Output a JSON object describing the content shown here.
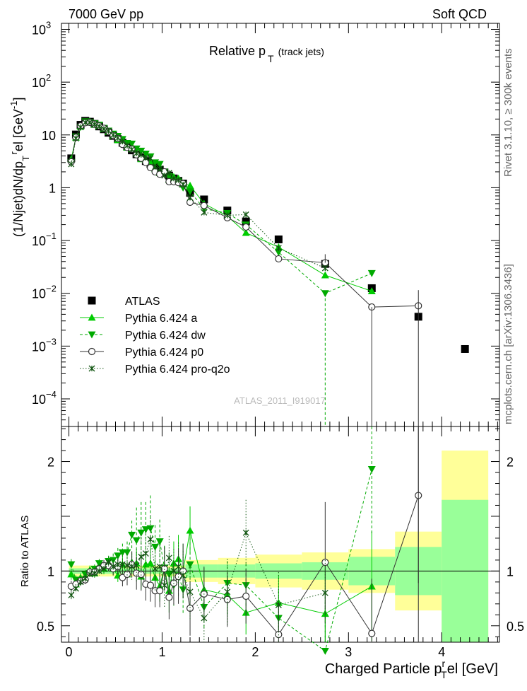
{
  "header": {
    "left": "7000 GeV pp",
    "right": "Soft QCD",
    "side_top": "Rivet 3.1.10, ≥ 300k events",
    "side_bottom": "mcplots.cern.ch [arXiv:1306.3436]",
    "watermark": "ATLAS_2011_I919017"
  },
  "chart_data": [
    {
      "type": "scatter",
      "title_main": "Relative p",
      "title_sub": "T",
      "title_note": "(track jets)",
      "ylabel": "(1/Njet)dN/dp",
      "ylabel_sub1": "T",
      "ylabel_sup": "r",
      "ylabel_tail": "el [GeV",
      "ylabel_exp": "-1",
      "ylabel_end": "]",
      "yscale": "log",
      "ylim": [
        3e-05,
        1300
      ],
      "xlim": [
        -0.08,
        4.62
      ],
      "ytick_labels": [
        {
          "v": 0.0001,
          "base": "10",
          "exp": "−4"
        },
        {
          "v": 0.001,
          "base": "10",
          "exp": "−3"
        },
        {
          "v": 0.01,
          "base": "10",
          "exp": "−2"
        },
        {
          "v": 0.1,
          "base": "10",
          "exp": "−1"
        },
        {
          "v": 1,
          "base": "1",
          "exp": ""
        },
        {
          "v": 10,
          "base": "10",
          "exp": ""
        },
        {
          "v": 100,
          "base": "10",
          "exp": "2"
        },
        {
          "v": 1000,
          "base": "10",
          "exp": "3"
        }
      ],
      "legend_position": "lower-left",
      "series": [
        {
          "name": "ATLAS",
          "color": "#000000",
          "marker": "square",
          "style": "none",
          "x": [
            0.025,
            0.075,
            0.125,
            0.175,
            0.225,
            0.275,
            0.325,
            0.375,
            0.425,
            0.475,
            0.525,
            0.575,
            0.625,
            0.675,
            0.725,
            0.775,
            0.825,
            0.875,
            0.925,
            0.975,
            1.025,
            1.075,
            1.125,
            1.175,
            1.225,
            1.3,
            1.45,
            1.7,
            1.9,
            2.25,
            2.75,
            3.25,
            3.75,
            4.25
          ],
          "y": [
            3.6,
            10.2,
            15.5,
            18.5,
            17.8,
            16.2,
            14.5,
            12.8,
            11.0,
            9.6,
            8.3,
            7.1,
            6.0,
            5.1,
            4.3,
            3.7,
            3.2,
            2.8,
            2.45,
            2.2,
            1.95,
            1.7,
            1.5,
            1.35,
            1.2,
            0.8,
            0.6,
            0.37,
            0.23,
            0.105,
            0.036,
            0.0125,
            0.0036,
            0.00088
          ]
        },
        {
          "name": "Pythia 6.424 a",
          "color": "#00cc00",
          "marker": "triangle-up",
          "style": "solid",
          "x": [
            0.025,
            0.075,
            0.125,
            0.175,
            0.225,
            0.275,
            0.325,
            0.375,
            0.425,
            0.475,
            0.525,
            0.575,
            0.625,
            0.675,
            0.725,
            0.775,
            0.825,
            0.875,
            0.925,
            0.975,
            1.025,
            1.075,
            1.125,
            1.175,
            1.225,
            1.3,
            1.45,
            1.7,
            1.9,
            2.25,
            2.75,
            3.25
          ],
          "y": [
            3.5,
            9.0,
            14.5,
            17.5,
            18.0,
            15.8,
            14.9,
            13.0,
            11.5,
            9.8,
            8.0,
            7.5,
            5.8,
            5.5,
            4.6,
            3.5,
            3.4,
            3.0,
            2.3,
            1.9,
            2.0,
            1.4,
            1.6,
            1.5,
            1.2,
            1.1,
            0.5,
            0.29,
            0.14,
            0.075,
            0.022,
            0.011
          ]
        },
        {
          "name": "Pythia 6.424 dw",
          "color": "#00aa00",
          "marker": "triangle-down",
          "style": "dashed",
          "x": [
            0.025,
            0.075,
            0.125,
            0.175,
            0.225,
            0.275,
            0.325,
            0.375,
            0.425,
            0.475,
            0.525,
            0.575,
            0.625,
            0.675,
            0.725,
            0.775,
            0.825,
            0.875,
            0.925,
            0.975,
            1.025,
            1.075,
            1.125,
            1.175,
            1.225,
            1.3,
            1.45,
            1.7,
            1.9,
            2.25,
            2.75,
            3.25
          ],
          "y": [
            3.0,
            9.3,
            14.0,
            18.0,
            17.5,
            16.5,
            15.5,
            13.5,
            12.0,
            10.5,
            9.5,
            8.3,
            7.0,
            6.8,
            5.5,
            5.0,
            4.4,
            3.9,
            3.0,
            2.8,
            2.0,
            1.65,
            1.3,
            1.3,
            1.0,
            0.85,
            0.4,
            0.33,
            0.2,
            0.06,
            0.01,
            0.024
          ]
        },
        {
          "name": "Pythia 6.424 p0",
          "color": "#333333",
          "marker": "circle-open",
          "style": "solid",
          "x": [
            0.025,
            0.075,
            0.125,
            0.175,
            0.225,
            0.275,
            0.325,
            0.375,
            0.425,
            0.475,
            0.525,
            0.575,
            0.625,
            0.675,
            0.725,
            0.775,
            0.825,
            0.875,
            0.925,
            0.975,
            1.025,
            1.075,
            1.125,
            1.175,
            1.225,
            1.3,
            1.45,
            1.7,
            1.9,
            2.25,
            2.75,
            3.25,
            3.75
          ],
          "y": [
            3.1,
            9.0,
            14.8,
            17.0,
            17.3,
            16.0,
            14.8,
            13.4,
            11.6,
            9.8,
            8.6,
            6.6,
            5.8,
            5.4,
            4.2,
            3.6,
            3.0,
            2.4,
            2.0,
            1.8,
            2.0,
            1.3,
            1.3,
            1.25,
            1.2,
            0.53,
            0.46,
            0.27,
            0.18,
            0.045,
            0.038,
            0.0055,
            0.0058
          ]
        },
        {
          "name": "Pythia 6.424 pro-q2o",
          "color": "#115511",
          "marker": "star",
          "style": "dotted",
          "x": [
            0.025,
            0.075,
            0.125,
            0.175,
            0.225,
            0.275,
            0.325,
            0.375,
            0.425,
            0.475,
            0.525,
            0.575,
            0.625,
            0.675,
            0.725,
            0.775,
            0.825,
            0.875,
            0.925,
            0.975,
            1.025,
            1.075,
            1.125,
            1.175,
            1.225,
            1.3,
            1.45,
            1.7,
            1.9,
            2.25,
            2.75
          ],
          "y": [
            2.8,
            8.6,
            14.0,
            17.2,
            17.3,
            15.9,
            14.5,
            13.0,
            11.9,
            10.0,
            8.8,
            7.5,
            6.3,
            5.3,
            4.5,
            4.2,
            3.7,
            3.6,
            2.5,
            2.3,
            1.7,
            1.9,
            1.5,
            1.4,
            1.15,
            0.65,
            0.34,
            0.3,
            0.31,
            0.072,
            0.03
          ]
        }
      ]
    },
    {
      "type": "scatter",
      "ylabel": "Ratio to ATLAS",
      "xlabel": "Charged Particle p",
      "xlabel_sub": "T",
      "xlabel_sup": "r",
      "xlabel_tail": "el [GeV]",
      "ylim": [
        0.35,
        2.32
      ],
      "xlim": [
        -0.08,
        4.62
      ],
      "xtick_labels": [
        "0",
        "1",
        "2",
        "3",
        "4"
      ],
      "ytick_labels": [
        "0.5",
        "1",
        "2"
      ],
      "bands": [
        {
          "x0": 0.0,
          "x1": 1.25,
          "g": 0.025,
          "y": 0.05
        },
        {
          "x0": 1.25,
          "x1": 1.6,
          "g": 0.06,
          "y": 0.1
        },
        {
          "x0": 1.6,
          "x1": 2.0,
          "g": 0.06,
          "y": 0.12
        },
        {
          "x0": 2.0,
          "x1": 2.5,
          "g": 0.07,
          "y": 0.15
        },
        {
          "x0": 2.5,
          "x1": 3.0,
          "g": 0.08,
          "y": 0.17
        },
        {
          "x0": 3.0,
          "x1": 3.5,
          "g": 0.13,
          "y": 0.2
        },
        {
          "x0": 3.5,
          "x1": 4.0,
          "g": 0.22,
          "y": 0.36
        },
        {
          "x0": 4.0,
          "x1": 4.5,
          "g": 0.65,
          "y": 1.1
        }
      ],
      "series": [
        {
          "name": "Pythia 6.424 a",
          "color": "#00cc00",
          "marker": "triangle-up",
          "style": "solid",
          "x": [
            0.025,
            0.075,
            0.125,
            0.175,
            0.225,
            0.275,
            0.325,
            0.375,
            0.425,
            0.475,
            0.525,
            0.575,
            0.625,
            0.675,
            0.725,
            0.775,
            0.825,
            0.875,
            0.925,
            0.975,
            1.025,
            1.075,
            1.125,
            1.175,
            1.225,
            1.3,
            1.45,
            1.7,
            1.9,
            2.25,
            2.75,
            3.25
          ],
          "y": [
            0.97,
            0.88,
            0.94,
            0.95,
            1.01,
            0.98,
            1.03,
            1.02,
            1.05,
            1.02,
            0.96,
            1.06,
            0.97,
            1.08,
            1.07,
            0.95,
            1.06,
            1.07,
            0.94,
            0.86,
            1.03,
            0.82,
            1.07,
            1.11,
            1.0,
            1.37,
            0.83,
            0.78,
            0.62,
            0.71,
            0.61,
            0.86
          ],
          "err": [
            0.05,
            0.04,
            0.04,
            0.04,
            0.04,
            0.04,
            0.04,
            0.05,
            0.05,
            0.06,
            0.06,
            0.07,
            0.08,
            0.1,
            0.12,
            0.12,
            0.12,
            0.14,
            0.15,
            0.14,
            0.2,
            0.2,
            0.2,
            0.22,
            0.25,
            0.22,
            0.2,
            0.18,
            0.2,
            0.25,
            0.45,
            0.5
          ]
        },
        {
          "name": "Pythia 6.424 dw",
          "color": "#00aa00",
          "marker": "triangle-down",
          "style": "dashed",
          "x": [
            0.025,
            0.075,
            0.125,
            0.175,
            0.225,
            0.275,
            0.325,
            0.375,
            0.425,
            0.475,
            0.525,
            0.575,
            0.625,
            0.675,
            0.725,
            0.775,
            0.825,
            0.875,
            0.925,
            0.975,
            1.025,
            1.075,
            1.125,
            1.175,
            1.225,
            1.3,
            1.45,
            1.7,
            1.9,
            2.25,
            2.75,
            3.25
          ],
          "y": [
            1.06,
            0.92,
            0.9,
            0.97,
            0.98,
            1.02,
            1.07,
            1.05,
            1.09,
            1.1,
            1.14,
            1.17,
            1.17,
            1.33,
            1.28,
            1.35,
            1.38,
            1.39,
            1.22,
            1.27,
            1.03,
            0.97,
            0.87,
            0.96,
            0.83,
            1.06,
            0.67,
            0.89,
            0.87,
            0.57,
            0.27,
            1.93
          ],
          "err": [
            0.05,
            0.04,
            0.04,
            0.04,
            0.04,
            0.04,
            0.04,
            0.05,
            0.05,
            0.06,
            0.07,
            0.08,
            0.1,
            0.13,
            0.3,
            0.28,
            0.25,
            0.3,
            0.2,
            0.2,
            0.2,
            0.2,
            0.2,
            0.2,
            0.22,
            0.25,
            0.2,
            0.2,
            0.2,
            0.25,
            0.5,
            0.6
          ]
        },
        {
          "name": "Pythia 6.424 p0",
          "color": "#333333",
          "marker": "circle-open",
          "style": "solid",
          "x": [
            0.025,
            0.075,
            0.125,
            0.175,
            0.225,
            0.275,
            0.325,
            0.375,
            0.425,
            0.475,
            0.525,
            0.575,
            0.625,
            0.675,
            0.725,
            0.775,
            0.825,
            0.875,
            0.925,
            0.975,
            1.025,
            1.075,
            1.125,
            1.175,
            1.225,
            1.3,
            1.45,
            1.7,
            1.9,
            2.25,
            2.75,
            3.25,
            3.75
          ],
          "y": [
            0.86,
            0.88,
            0.91,
            0.92,
            0.99,
            0.99,
            1.02,
            1.05,
            1.05,
            1.02,
            1.04,
            0.94,
            0.97,
            1.06,
            0.98,
            0.97,
            0.88,
            0.87,
            0.82,
            0.82,
            1.02,
            0.76,
            0.89,
            0.95,
            1.0,
            0.66,
            0.79,
            0.74,
            0.77,
            0.42,
            1.08,
            0.43,
            1.69
          ],
          "err": [
            0.05,
            0.04,
            0.04,
            0.04,
            0.04,
            0.04,
            0.04,
            0.05,
            0.05,
            0.06,
            0.07,
            0.08,
            0.1,
            0.12,
            0.15,
            0.15,
            0.15,
            0.15,
            0.15,
            0.15,
            0.2,
            0.2,
            0.2,
            0.25,
            0.25,
            0.25,
            0.25,
            0.25,
            0.25,
            0.3,
            0.55,
            0.5,
            0.8
          ]
        },
        {
          "name": "Pythia 6.424 pro-q2o",
          "color": "#115511",
          "marker": "star",
          "style": "dotted",
          "x": [
            0.025,
            0.075,
            0.125,
            0.175,
            0.225,
            0.275,
            0.325,
            0.375,
            0.425,
            0.475,
            0.525,
            0.575,
            0.625,
            0.675,
            0.725,
            0.775,
            0.825,
            0.875,
            0.925,
            0.975,
            1.025,
            1.075,
            1.125,
            1.175,
            1.225,
            1.3,
            1.45,
            1.7,
            1.9,
            2.25,
            2.75
          ],
          "y": [
            0.78,
            0.84,
            0.9,
            0.93,
            0.97,
            0.98,
            1.0,
            1.02,
            1.08,
            1.04,
            1.06,
            1.06,
            1.05,
            1.04,
            1.05,
            1.13,
            1.16,
            1.29,
            1.02,
            1.04,
            0.87,
            1.12,
            1.0,
            1.04,
            0.96,
            0.81,
            0.57,
            0.81,
            1.35,
            0.69,
            0.8
          ],
          "err": [
            0.05,
            0.04,
            0.04,
            0.04,
            0.04,
            0.04,
            0.04,
            0.05,
            0.05,
            0.06,
            0.07,
            0.08,
            0.1,
            0.12,
            0.15,
            0.2,
            0.2,
            0.22,
            0.2,
            0.2,
            0.2,
            0.2,
            0.2,
            0.22,
            0.22,
            0.25,
            0.25,
            0.3,
            0.3,
            0.3,
            0.3
          ]
        }
      ]
    }
  ]
}
